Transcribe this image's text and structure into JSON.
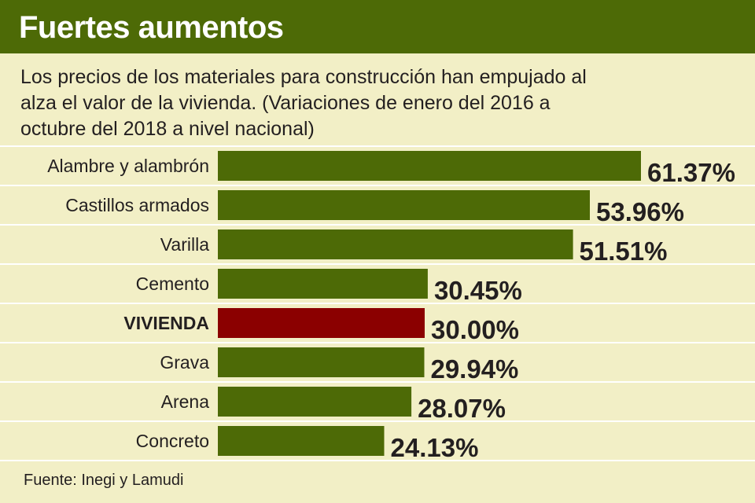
{
  "colors": {
    "header_bg": "#4d6a06",
    "background": "#f2efc6",
    "bar": "#4d6a06",
    "highlight_bar": "#8b0000",
    "text": "#231f20",
    "row_divider": "#ffffff"
  },
  "header": {
    "title": "Fuertes aumentos"
  },
  "subtitle": "Los precios de los materiales para construcción han empujado al alza el valor de la vivienda. (Variaciones de enero del 2016 a octubre del 2018 a nivel nacional)",
  "source": "Fuente: Inegi y Lamudi",
  "chart_data": {
    "type": "bar",
    "orientation": "horizontal",
    "title": "Fuertes aumentos",
    "subtitle": "Los precios de los materiales para construcción han empujado al alza el valor de la vivienda. (Variaciones de enero del 2016 a octubre del 2018 a nivel nacional)",
    "categories": [
      "Alambre y alambrón",
      "Castillos armados",
      "Varilla",
      "Cemento",
      "VIVIENDA",
      "Grava",
      "Arena",
      "Concreto"
    ],
    "values": [
      61.37,
      53.96,
      51.51,
      30.45,
      30.0,
      29.94,
      28.07,
      24.13
    ],
    "value_labels": [
      "61.37%",
      "53.96%",
      "51.51%",
      "30.45%",
      "30.00%",
      "29.94%",
      "28.07%",
      "24.13%"
    ],
    "highlight_category": "VIVIENDA",
    "unit": "%",
    "xlim": [
      0,
      61.37
    ],
    "grid": false,
    "legend": "none",
    "xlabel": "",
    "ylabel": ""
  }
}
